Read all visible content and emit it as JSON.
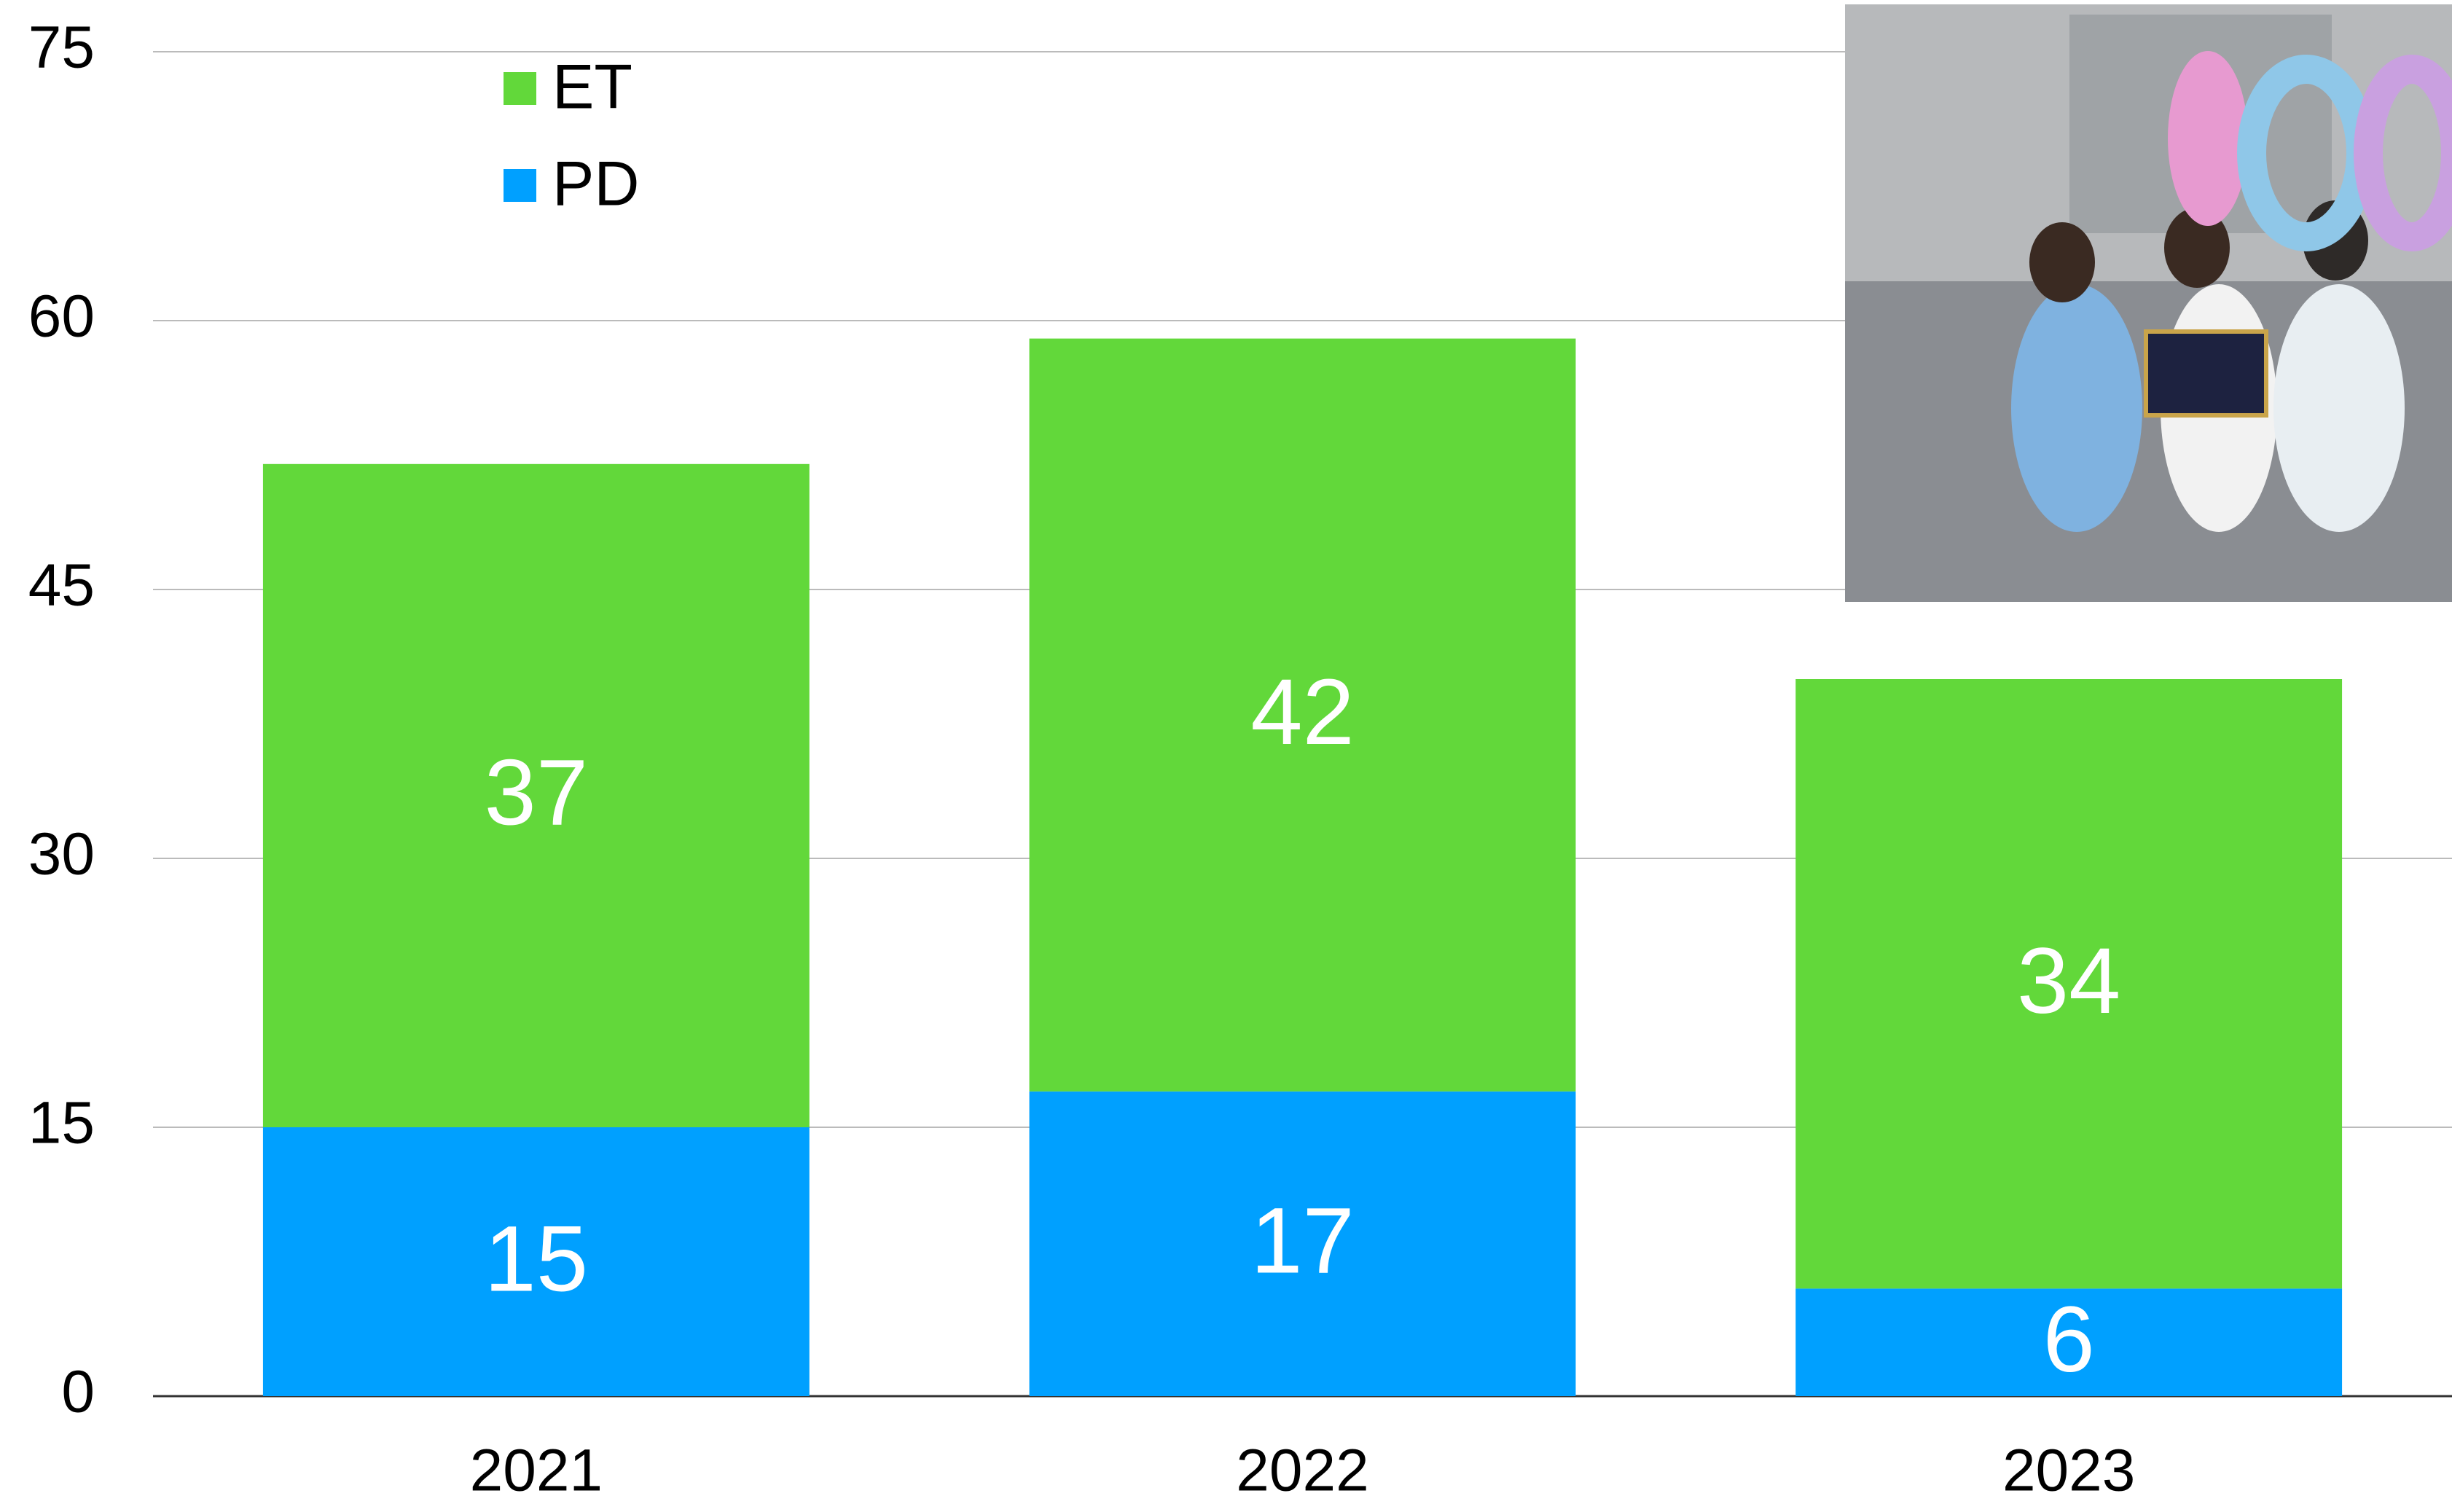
{
  "chart_data": {
    "type": "stacked-bar",
    "categories": [
      "2021",
      "2022",
      "2023"
    ],
    "series": [
      {
        "name": "PD",
        "color": "#00a0ff",
        "values": [
          15,
          17,
          6
        ]
      },
      {
        "name": "ET",
        "color": "#62d83a",
        "values": [
          37,
          42,
          34
        ]
      }
    ],
    "ylim": [
      0,
      75
    ],
    "yticks": [
      0,
      15,
      30,
      45,
      60,
      75
    ],
    "grid": true,
    "legend": "top-left"
  }
}
